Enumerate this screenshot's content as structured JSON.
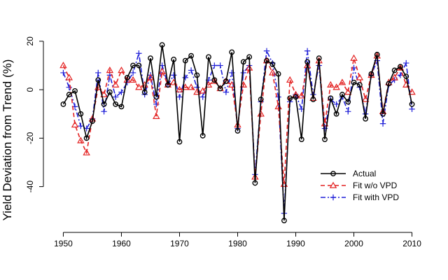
{
  "chart_data": {
    "type": "line",
    "ylabel": "Yield Deviation from Trend (%)",
    "xlabel": "",
    "xlim": [
      1948.5,
      2011.5
    ],
    "ylim": [
      -56,
      22
    ],
    "x_ticks": [
      1950,
      1960,
      1970,
      1980,
      1990,
      2000,
      2010
    ],
    "y_ticks": [
      -40,
      -20,
      0,
      20
    ],
    "x": [
      1950,
      1951,
      1952,
      1953,
      1954,
      1955,
      1956,
      1957,
      1958,
      1959,
      1960,
      1961,
      1962,
      1963,
      1964,
      1965,
      1966,
      1967,
      1968,
      1969,
      1970,
      1971,
      1972,
      1973,
      1974,
      1975,
      1976,
      1977,
      1978,
      1979,
      1980,
      1981,
      1982,
      1983,
      1984,
      1985,
      1986,
      1987,
      1988,
      1989,
      1990,
      1991,
      1992,
      1993,
      1994,
      1995,
      1996,
      1997,
      1998,
      1999,
      2000,
      2001,
      2002,
      2003,
      2004,
      2005,
      2006,
      2007,
      2008,
      2009,
      2010
    ],
    "series": [
      {
        "name": "Actual",
        "color": "#000000",
        "marker": "circle",
        "dash": "solid",
        "values": [
          -6,
          -2,
          -0.5,
          -10,
          -20,
          -13,
          4,
          -6,
          -1,
          -6,
          -7,
          5,
          10,
          10,
          -1,
          13,
          -3,
          18.5,
          2,
          12.5,
          -21.5,
          12,
          14,
          6,
          -19,
          13.5,
          4,
          0.5,
          3.5,
          15.5,
          -17,
          11.5,
          13.5,
          -38.5,
          -4,
          12,
          10.5,
          6.5,
          -54,
          -3.5,
          -3,
          -20.5,
          11.5,
          -4,
          13,
          -20.5,
          -3.5,
          -10,
          -2,
          -5,
          3,
          2,
          -12,
          6.5,
          14.5,
          -10,
          2.5,
          8,
          9.5,
          5.5,
          -6
        ]
      },
      {
        "name": "Fit w/o VPD",
        "color": "#e32222",
        "marker": "triangle",
        "dash": "dashed",
        "values": [
          10,
          5,
          -14.5,
          -21,
          -26,
          -12,
          1,
          -2,
          8,
          2,
          8,
          4,
          4,
          1,
          2,
          5,
          -11,
          7.5,
          2,
          3,
          0,
          1,
          1,
          -1,
          -0.5,
          2,
          3.5,
          0.5,
          3.5,
          2,
          -14.5,
          2,
          9,
          -36,
          -10,
          12,
          7,
          -7,
          -39,
          4,
          -2,
          -2.5,
          10,
          -3.5,
          12,
          -14,
          2,
          1,
          3,
          -1,
          13,
          5,
          -4,
          6,
          14,
          -9,
          3,
          5,
          9,
          2,
          -1
        ]
      },
      {
        "name": "Fit with VPD",
        "color": "#2020d8",
        "marker": "plus",
        "dash": "dotdash",
        "values": [
          7,
          1,
          -7,
          -15,
          -16,
          -12,
          7,
          -9,
          6,
          -3,
          -1,
          3,
          7,
          15,
          -2,
          6,
          -6,
          10,
          2,
          6,
          -3,
          5,
          8,
          1,
          -3,
          4,
          10,
          10,
          -1,
          7,
          -16,
          7,
          10,
          -35,
          -5,
          16,
          11,
          -3,
          -51,
          -5,
          -2,
          -8,
          16,
          -2,
          10,
          -16,
          -4,
          -6,
          -3,
          -9,
          9,
          1,
          -10,
          6,
          12,
          -14,
          2,
          4,
          6,
          11,
          -8
        ]
      }
    ],
    "legend": {
      "position": "bottom-right",
      "entries": [
        "Actual",
        "Fit w/o VPD",
        "Fit with VPD"
      ]
    },
    "grid": false
  }
}
